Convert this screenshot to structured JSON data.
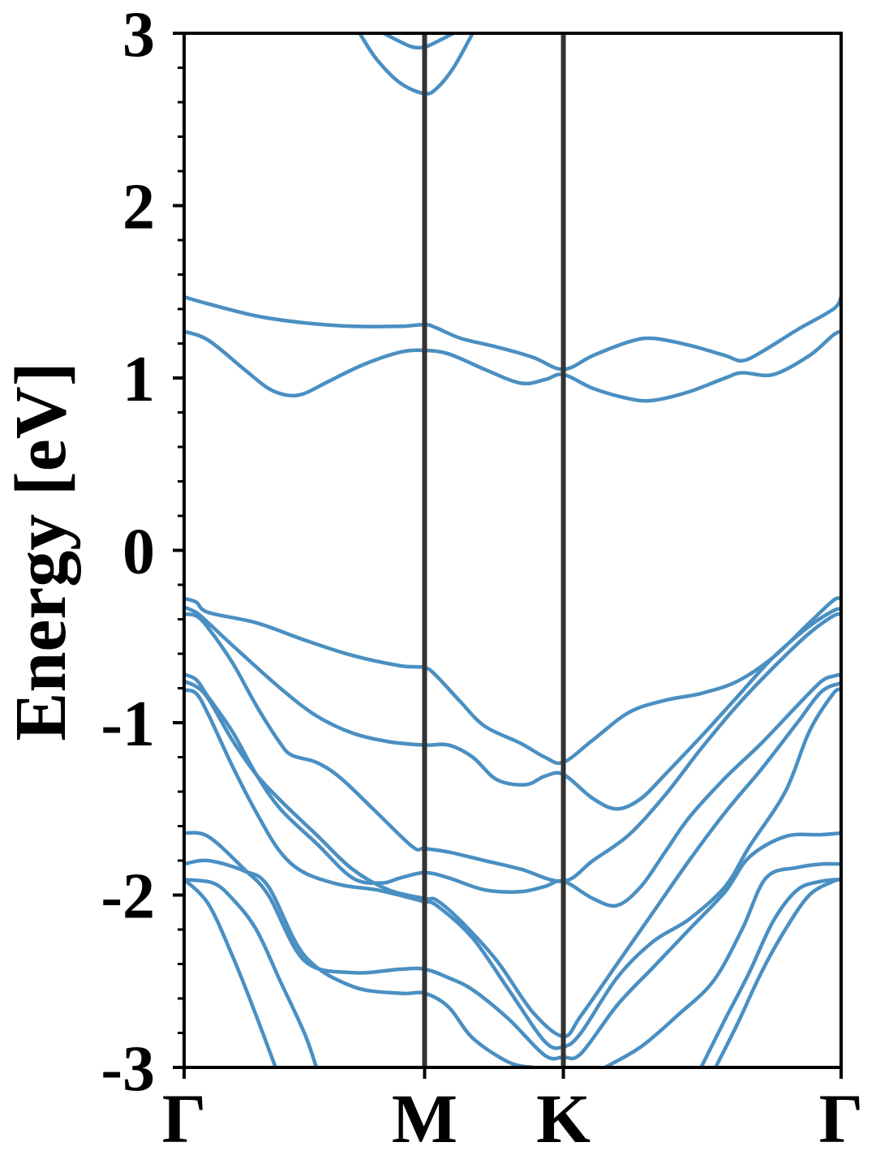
{
  "chart_data": {
    "type": "line",
    "title": "",
    "xlabel": "",
    "ylabel": "Energy [eV]",
    "ylim": [
      -3,
      3
    ],
    "yticks": [
      "3",
      "2",
      "1",
      "0",
      "-1",
      "-2",
      "-3"
    ],
    "ytick_values": [
      3,
      2,
      1,
      0,
      -1,
      -2,
      -3
    ],
    "xlim": [
      0,
      2.732
    ],
    "xticks": [
      {
        "label": "Γ",
        "x": 0
      },
      {
        "label": "M",
        "x": 1.0
      },
      {
        "label": "K",
        "x": 1.577
      },
      {
        "label": "Γ",
        "x": 2.732
      }
    ],
    "high_symmetry_lines": [
      1.0,
      1.577
    ],
    "grid": false,
    "legend": "none",
    "line_color": "#4a8fc2",
    "series": [
      {
        "values": [
          [
            0.0,
            1.47
          ],
          [
            0.1,
            1.43
          ],
          [
            0.3,
            1.36
          ],
          [
            0.5,
            1.32
          ],
          [
            0.7,
            1.3
          ],
          [
            0.9,
            1.3
          ],
          [
            1.0,
            1.31
          ],
          [
            1.05,
            1.29
          ],
          [
            1.15,
            1.23
          ],
          [
            1.3,
            1.18
          ],
          [
            1.45,
            1.12
          ],
          [
            1.577,
            1.05
          ],
          [
            1.7,
            1.13
          ],
          [
            1.85,
            1.21
          ],
          [
            1.95,
            1.23
          ],
          [
            2.1,
            1.19
          ],
          [
            2.25,
            1.13
          ],
          [
            2.32,
            1.1
          ],
          [
            2.4,
            1.15
          ],
          [
            2.55,
            1.28
          ],
          [
            2.7,
            1.4
          ],
          [
            2.732,
            1.47
          ]
        ]
      },
      {
        "values": [
          [
            0.0,
            1.27
          ],
          [
            0.1,
            1.22
          ],
          [
            0.25,
            1.05
          ],
          [
            0.35,
            0.94
          ],
          [
            0.43,
            0.9
          ],
          [
            0.5,
            0.91
          ],
          [
            0.6,
            0.98
          ],
          [
            0.75,
            1.08
          ],
          [
            0.9,
            1.15
          ],
          [
            1.0,
            1.16
          ],
          [
            1.1,
            1.14
          ],
          [
            1.25,
            1.05
          ],
          [
            1.4,
            0.97
          ],
          [
            1.5,
            0.99
          ],
          [
            1.577,
            1.02
          ],
          [
            1.7,
            0.94
          ],
          [
            1.85,
            0.88
          ],
          [
            1.95,
            0.87
          ],
          [
            2.1,
            0.92
          ],
          [
            2.25,
            1.0
          ],
          [
            2.32,
            1.03
          ],
          [
            2.45,
            1.02
          ],
          [
            2.6,
            1.13
          ],
          [
            2.7,
            1.25
          ],
          [
            2.732,
            1.27
          ]
        ]
      },
      {
        "values": [
          [
            0.0,
            -0.28
          ],
          [
            0.05,
            -0.3
          ],
          [
            0.1,
            -0.36
          ],
          [
            0.3,
            -0.42
          ],
          [
            0.5,
            -0.52
          ],
          [
            0.7,
            -0.61
          ],
          [
            0.9,
            -0.67
          ],
          [
            1.0,
            -0.68
          ],
          [
            1.05,
            -0.73
          ],
          [
            1.15,
            -0.88
          ],
          [
            1.25,
            -1.02
          ],
          [
            1.4,
            -1.12
          ],
          [
            1.5,
            -1.2
          ],
          [
            1.577,
            -1.23
          ],
          [
            1.7,
            -1.1
          ],
          [
            1.85,
            -0.94
          ],
          [
            2.0,
            -0.87
          ],
          [
            2.15,
            -0.83
          ],
          [
            2.3,
            -0.76
          ],
          [
            2.45,
            -0.62
          ],
          [
            2.6,
            -0.42
          ],
          [
            2.7,
            -0.29
          ],
          [
            2.732,
            -0.28
          ]
        ]
      },
      {
        "values": [
          [
            0.0,
            -0.33
          ],
          [
            0.05,
            -0.36
          ],
          [
            0.1,
            -0.42
          ],
          [
            0.2,
            -0.55
          ],
          [
            0.4,
            -0.8
          ],
          [
            0.55,
            -0.96
          ],
          [
            0.7,
            -1.06
          ],
          [
            0.85,
            -1.11
          ],
          [
            1.0,
            -1.13
          ],
          [
            1.1,
            -1.13
          ],
          [
            1.2,
            -1.2
          ],
          [
            1.3,
            -1.33
          ],
          [
            1.42,
            -1.36
          ],
          [
            1.5,
            -1.31
          ],
          [
            1.577,
            -1.3
          ],
          [
            1.7,
            -1.44
          ],
          [
            1.8,
            -1.5
          ],
          [
            1.9,
            -1.44
          ],
          [
            2.0,
            -1.3
          ],
          [
            2.15,
            -1.08
          ],
          [
            2.3,
            -0.85
          ],
          [
            2.45,
            -0.62
          ],
          [
            2.6,
            -0.44
          ],
          [
            2.7,
            -0.35
          ],
          [
            2.732,
            -0.34
          ]
        ]
      },
      {
        "values": [
          [
            0.0,
            -0.37
          ],
          [
            0.05,
            -0.38
          ],
          [
            0.1,
            -0.45
          ],
          [
            0.2,
            -0.65
          ],
          [
            0.3,
            -0.9
          ],
          [
            0.4,
            -1.12
          ],
          [
            0.45,
            -1.19
          ],
          [
            0.55,
            -1.23
          ],
          [
            0.65,
            -1.32
          ],
          [
            0.8,
            -1.52
          ],
          [
            0.95,
            -1.72
          ],
          [
            1.0,
            -1.73
          ],
          [
            1.1,
            -1.75
          ],
          [
            1.25,
            -1.8
          ],
          [
            1.4,
            -1.85
          ],
          [
            1.577,
            -1.92
          ],
          [
            1.7,
            -1.8
          ],
          [
            1.85,
            -1.65
          ],
          [
            2.0,
            -1.42
          ],
          [
            2.15,
            -1.15
          ],
          [
            2.3,
            -0.9
          ],
          [
            2.45,
            -0.68
          ],
          [
            2.6,
            -0.48
          ],
          [
            2.7,
            -0.38
          ],
          [
            2.732,
            -0.37
          ]
        ]
      },
      {
        "values": [
          [
            0.0,
            -0.72
          ],
          [
            0.05,
            -0.75
          ],
          [
            0.1,
            -0.85
          ],
          [
            0.2,
            -1.05
          ],
          [
            0.3,
            -1.3
          ],
          [
            0.4,
            -1.5
          ],
          [
            0.55,
            -1.7
          ],
          [
            0.7,
            -1.9
          ],
          [
            0.82,
            -1.93
          ],
          [
            0.9,
            -1.9
          ],
          [
            1.0,
            -1.87
          ],
          [
            1.1,
            -1.9
          ],
          [
            1.25,
            -1.97
          ],
          [
            1.4,
            -1.98
          ],
          [
            1.5,
            -1.95
          ],
          [
            1.577,
            -1.92
          ],
          [
            1.7,
            -2.02
          ],
          [
            1.8,
            -2.06
          ],
          [
            1.9,
            -1.95
          ],
          [
            2.0,
            -1.75
          ],
          [
            2.1,
            -1.55
          ],
          [
            2.25,
            -1.32
          ],
          [
            2.4,
            -1.12
          ],
          [
            2.55,
            -0.9
          ],
          [
            2.65,
            -0.76
          ],
          [
            2.7,
            -0.73
          ],
          [
            2.732,
            -0.72
          ]
        ]
      },
      {
        "values": [
          [
            0.0,
            -0.76
          ],
          [
            0.05,
            -0.79
          ],
          [
            0.1,
            -0.86
          ],
          [
            0.2,
            -1.1
          ],
          [
            0.3,
            -1.3
          ],
          [
            0.4,
            -1.45
          ],
          [
            0.55,
            -1.65
          ],
          [
            0.7,
            -1.85
          ],
          [
            0.85,
            -1.97
          ],
          [
            1.0,
            -2.02
          ],
          [
            1.05,
            -2.03
          ],
          [
            1.15,
            -2.15
          ],
          [
            1.3,
            -2.38
          ],
          [
            1.45,
            -2.68
          ],
          [
            1.577,
            -2.82
          ],
          [
            1.65,
            -2.7
          ],
          [
            1.8,
            -2.4
          ],
          [
            1.95,
            -2.1
          ],
          [
            2.1,
            -1.8
          ],
          [
            2.25,
            -1.52
          ],
          [
            2.4,
            -1.27
          ],
          [
            2.55,
            -1.0
          ],
          [
            2.65,
            -0.82
          ],
          [
            2.732,
            -0.77
          ]
        ]
      },
      {
        "values": [
          [
            0.0,
            -0.81
          ],
          [
            0.05,
            -0.83
          ],
          [
            0.1,
            -0.95
          ],
          [
            0.2,
            -1.25
          ],
          [
            0.3,
            -1.52
          ],
          [
            0.4,
            -1.75
          ],
          [
            0.5,
            -1.87
          ],
          [
            0.65,
            -1.94
          ],
          [
            0.8,
            -1.97
          ],
          [
            0.95,
            -2.02
          ],
          [
            1.0,
            -2.04
          ],
          [
            1.05,
            -2.06
          ],
          [
            1.2,
            -2.25
          ],
          [
            1.35,
            -2.55
          ],
          [
            1.5,
            -2.85
          ],
          [
            1.577,
            -2.88
          ],
          [
            1.65,
            -2.8
          ],
          [
            1.8,
            -2.48
          ],
          [
            1.95,
            -2.27
          ],
          [
            2.1,
            -2.14
          ],
          [
            2.25,
            -1.95
          ],
          [
            2.35,
            -1.72
          ],
          [
            2.5,
            -1.4
          ],
          [
            2.6,
            -1.05
          ],
          [
            2.7,
            -0.83
          ],
          [
            2.732,
            -0.81
          ]
        ]
      },
      {
        "values": [
          [
            0.0,
            -1.64
          ],
          [
            0.1,
            -1.66
          ],
          [
            0.25,
            -1.85
          ],
          [
            0.35,
            -2.0
          ],
          [
            0.5,
            -2.38
          ],
          [
            0.7,
            -2.45
          ],
          [
            0.9,
            -2.43
          ],
          [
            1.0,
            -2.43
          ],
          [
            1.1,
            -2.48
          ],
          [
            1.2,
            -2.55
          ],
          [
            1.35,
            -2.72
          ],
          [
            1.5,
            -2.93
          ],
          [
            1.577,
            -2.94
          ],
          [
            1.65,
            -2.92
          ],
          [
            1.8,
            -2.64
          ],
          [
            1.95,
            -2.42
          ],
          [
            2.1,
            -2.2
          ],
          [
            2.25,
            -1.98
          ],
          [
            2.35,
            -1.78
          ],
          [
            2.5,
            -1.66
          ],
          [
            2.65,
            -1.65
          ],
          [
            2.732,
            -1.64
          ]
        ]
      },
      {
        "values": [
          [
            0.0,
            -1.82
          ],
          [
            0.1,
            -1.8
          ],
          [
            0.25,
            -1.86
          ],
          [
            0.35,
            -1.95
          ],
          [
            0.5,
            -2.35
          ],
          [
            0.7,
            -2.53
          ],
          [
            0.9,
            -2.57
          ],
          [
            1.0,
            -2.57
          ],
          [
            1.1,
            -2.65
          ],
          [
            1.2,
            -2.83
          ],
          [
            1.35,
            -2.97
          ],
          [
            1.45,
            -3.0
          ]
        ]
      },
      {
        "values": [
          [
            1.75,
            -3.0
          ],
          [
            1.9,
            -2.88
          ],
          [
            2.05,
            -2.7
          ],
          [
            2.2,
            -2.5
          ],
          [
            2.32,
            -2.2
          ],
          [
            2.42,
            -1.9
          ],
          [
            2.55,
            -1.84
          ],
          [
            2.65,
            -1.82
          ],
          [
            2.732,
            -1.82
          ]
        ]
      },
      {
        "values": [
          [
            0.0,
            -1.91
          ],
          [
            0.12,
            -1.93
          ],
          [
            0.2,
            -2.02
          ],
          [
            0.3,
            -2.2
          ],
          [
            0.4,
            -2.5
          ],
          [
            0.5,
            -2.8
          ],
          [
            0.55,
            -3.0
          ]
        ]
      },
      {
        "values": [
          [
            2.15,
            -3.0
          ],
          [
            2.25,
            -2.72
          ],
          [
            2.35,
            -2.45
          ],
          [
            2.45,
            -2.15
          ],
          [
            2.55,
            -1.97
          ],
          [
            2.65,
            -1.92
          ],
          [
            2.732,
            -1.91
          ]
        ]
      },
      {
        "values": [
          [
            0.0,
            -1.91
          ],
          [
            0.1,
            -2.05
          ],
          [
            0.2,
            -2.35
          ],
          [
            0.3,
            -2.7
          ],
          [
            0.38,
            -3.0
          ]
        ]
      },
      {
        "values": [
          [
            2.21,
            -3.0
          ],
          [
            2.3,
            -2.75
          ],
          [
            2.4,
            -2.45
          ],
          [
            2.5,
            -2.2
          ],
          [
            2.6,
            -2.0
          ],
          [
            2.7,
            -1.92
          ],
          [
            2.732,
            -1.91
          ]
        ]
      },
      {
        "values": [
          [
            0.83,
            3.0
          ],
          [
            0.9,
            2.95
          ],
          [
            0.95,
            2.92
          ],
          [
            1.0,
            2.92
          ],
          [
            1.05,
            2.95
          ],
          [
            1.12,
            3.0
          ]
        ]
      },
      {
        "values": [
          [
            0.73,
            3.0
          ],
          [
            0.8,
            2.85
          ],
          [
            0.9,
            2.71
          ],
          [
            1.0,
            2.65
          ],
          [
            1.05,
            2.68
          ],
          [
            1.12,
            2.8
          ],
          [
            1.2,
            3.0
          ]
        ]
      }
    ]
  }
}
